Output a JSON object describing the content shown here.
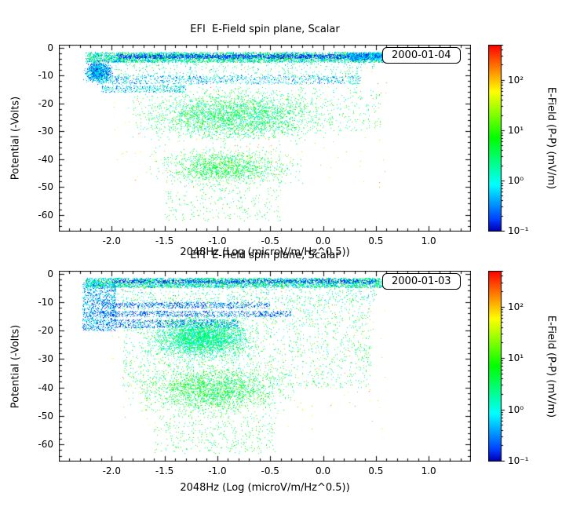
{
  "figure": {
    "background": "#ffffff",
    "text_color": "#000000"
  },
  "chart_data": [
    {
      "type": "scatter",
      "title": "EFI  E-Field spin plane, Scalar",
      "date_label": "2000-01-04",
      "xlabel": "2048Hz (Log (microV/m/Hz^0.5))",
      "ylabel": "Potential (-Volts)",
      "xlim": [
        -2.5,
        1.4
      ],
      "ylim": [
        -66,
        1
      ],
      "grid": false,
      "legend_position": "none",
      "xticks": [
        {
          "v": -2.0,
          "label": "-2.0"
        },
        {
          "v": -1.5,
          "label": "-1.5"
        },
        {
          "v": -1.0,
          "label": "-1.0"
        },
        {
          "v": -0.5,
          "label": "-0.5"
        },
        {
          "v": 0.0,
          "label": "0.0"
        },
        {
          "v": 0.5,
          "label": "0.5"
        },
        {
          "v": 1.0,
          "label": "1.0"
        }
      ],
      "yticks": [
        {
          "v": 0,
          "label": "0"
        },
        {
          "v": -10,
          "label": "-10"
        },
        {
          "v": -20,
          "label": "-20"
        },
        {
          "v": -30,
          "label": "-30"
        },
        {
          "v": -40,
          "label": "-40"
        },
        {
          "v": -50,
          "label": "-50"
        },
        {
          "v": -60,
          "label": "-60"
        }
      ],
      "x_minor": 0.1,
      "y_minor": 2,
      "seed": 104,
      "color_scale": {
        "label": "E-Field (P-P) (mV/m)",
        "scale": "log",
        "min": 0.1,
        "max": 500,
        "ticks": [
          {
            "v": 100,
            "label": "10²"
          },
          {
            "v": 10,
            "label": "10¹"
          },
          {
            "v": 1,
            "label": "10⁰"
          },
          {
            "v": 0.1,
            "label": "10⁻¹"
          }
        ]
      },
      "clusters": [
        {
          "x": [
            -2.25,
            0.65
          ],
          "y": [
            -5.2,
            -1.6
          ],
          "n": 4500,
          "logv": [
            -0.7,
            1.0
          ]
        },
        {
          "x": [
            -1.95,
            0.6
          ],
          "y": [
            -3.8,
            -2.4
          ],
          "n": 1600,
          "logv": [
            -1.0,
            -0.5
          ]
        },
        {
          "x": [
            0.25,
            0.6
          ],
          "y": [
            -4.5,
            -1.8
          ],
          "n": 700,
          "logv": [
            -0.9,
            0.2
          ]
        },
        {
          "x": [
            -2.28,
            -1.98
          ],
          "y": [
            -13,
            -4
          ],
          "n": 1300,
          "logv": [
            -1.0,
            0.3
          ],
          "gauss": true
        },
        {
          "x": [
            -2.15,
            0.35
          ],
          "y": [
            -13,
            -10
          ],
          "n": 1000,
          "logv": [
            -0.9,
            0.5
          ]
        },
        {
          "x": [
            -2.1,
            -1.3
          ],
          "y": [
            -16,
            -13.5
          ],
          "n": 350,
          "logv": [
            -0.8,
            0.4
          ]
        },
        {
          "x": [
            -2.0,
            0.5
          ],
          "y": [
            -10,
            -5
          ],
          "n": 350,
          "logv": [
            -0.5,
            0.8
          ]
        },
        {
          "x": [
            -1.95,
            0.3
          ],
          "y": [
            -36,
            -13
          ],
          "n": 2600,
          "logv": [
            -0.2,
            1.2
          ],
          "gauss": true
        },
        {
          "x": [
            -1.8,
            0.55
          ],
          "y": [
            -30,
            -14
          ],
          "n": 600,
          "logv": [
            -0.1,
            1.1
          ]
        },
        {
          "x": [
            -1.75,
            -0.1
          ],
          "y": [
            -52,
            -34
          ],
          "n": 1500,
          "logv": [
            0.0,
            1.3
          ],
          "gauss": true
        },
        {
          "x": [
            -1.5,
            -0.4
          ],
          "y": [
            -62,
            -50
          ],
          "n": 220,
          "logv": [
            0.1,
            1.2
          ]
        },
        {
          "x": [
            -2.0,
            0.6
          ],
          "y": [
            -50,
            -2
          ],
          "n": 180,
          "logv": [
            1.4,
            2.4
          ]
        }
      ]
    },
    {
      "type": "scatter",
      "title": "EFI  E-Field spin plane, Scalar",
      "date_label": "2000-01-03",
      "xlabel": "2048Hz (Log (microV/m/Hz^0.5))",
      "ylabel": "Potential (-Volts)",
      "xlim": [
        -2.5,
        1.4
      ],
      "ylim": [
        -66,
        1
      ],
      "grid": false,
      "legend_position": "none",
      "xticks": [
        {
          "v": -2.0,
          "label": "-2.0"
        },
        {
          "v": -1.5,
          "label": "-1.5"
        },
        {
          "v": -1.0,
          "label": "-1.0"
        },
        {
          "v": -0.5,
          "label": "-0.5"
        },
        {
          "v": 0.0,
          "label": "0.0"
        },
        {
          "v": 0.5,
          "label": "0.5"
        },
        {
          "v": 1.0,
          "label": "1.0"
        }
      ],
      "yticks": [
        {
          "v": 0,
          "label": "0"
        },
        {
          "v": -10,
          "label": "-10"
        },
        {
          "v": -20,
          "label": "-20"
        },
        {
          "v": -30,
          "label": "-30"
        },
        {
          "v": -40,
          "label": "-40"
        },
        {
          "v": -50,
          "label": "-50"
        },
        {
          "v": -60,
          "label": "-60"
        }
      ],
      "x_minor": 0.1,
      "y_minor": 2,
      "seed": 103,
      "color_scale": {
        "label": "E-Field (P-P) (mV/m)",
        "scale": "log",
        "min": 0.1,
        "max": 500,
        "ticks": [
          {
            "v": 100,
            "label": "10²"
          },
          {
            "v": 10,
            "label": "10¹"
          },
          {
            "v": 1,
            "label": "10⁰"
          },
          {
            "v": 0.1,
            "label": "10⁻¹"
          }
        ]
      },
      "clusters": [
        {
          "x": [
            -2.25,
            0.65
          ],
          "y": [
            -4.8,
            -1.4
          ],
          "n": 4000,
          "logv": [
            -0.7,
            1.0
          ]
        },
        {
          "x": [
            -2.0,
            0.5
          ],
          "y": [
            -3.2,
            -2.0
          ],
          "n": 900,
          "logv": [
            -1.0,
            -0.5
          ]
        },
        {
          "x": [
            -2.28,
            -1.96
          ],
          "y": [
            -20,
            -3
          ],
          "n": 1100,
          "logv": [
            -1.0,
            0.2
          ]
        },
        {
          "x": [
            -2.1,
            -0.5
          ],
          "y": [
            -12,
            -10
          ],
          "n": 700,
          "logv": [
            -1.0,
            -0.3
          ]
        },
        {
          "x": [
            -2.1,
            -0.3
          ],
          "y": [
            -15,
            -13
          ],
          "n": 700,
          "logv": [
            -1.0,
            -0.3
          ]
        },
        {
          "x": [
            -2.0,
            -0.8
          ],
          "y": [
            -19,
            -16
          ],
          "n": 700,
          "logv": [
            -1.0,
            -0.2
          ]
        },
        {
          "x": [
            -2.0,
            0.5
          ],
          "y": [
            -10,
            -4.5
          ],
          "n": 400,
          "logv": [
            -0.5,
            0.9
          ]
        },
        {
          "x": [
            -1.75,
            -0.55
          ],
          "y": [
            -32,
            -13
          ],
          "n": 3200,
          "logv": [
            -0.3,
            0.9
          ],
          "gauss": true
        },
        {
          "x": [
            -1.9,
            0.45
          ],
          "y": [
            -40,
            -8
          ],
          "n": 1800,
          "logv": [
            -0.2,
            1.2
          ]
        },
        {
          "x": [
            -1.95,
            -0.15
          ],
          "y": [
            -52,
            -30
          ],
          "n": 2200,
          "logv": [
            0.0,
            1.3
          ],
          "gauss": true
        },
        {
          "x": [
            -1.6,
            -0.45
          ],
          "y": [
            -63,
            -50
          ],
          "n": 350,
          "logv": [
            0.1,
            1.2
          ]
        },
        {
          "x": [
            -2.0,
            0.6
          ],
          "y": [
            -55,
            -2
          ],
          "n": 200,
          "logv": [
            1.4,
            2.4
          ]
        }
      ]
    }
  ]
}
